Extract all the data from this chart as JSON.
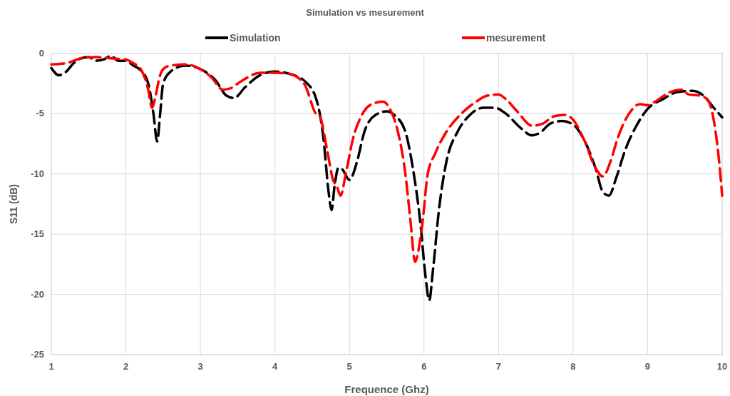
{
  "chart_data": {
    "type": "line",
    "title": "Simulation vs mesurement",
    "xlabel": "Frequence (Ghz)",
    "ylabel": "S11 (dB)",
    "xlim": [
      1,
      10
    ],
    "xticks": [
      1,
      2,
      3,
      4,
      5,
      6,
      7,
      8,
      9,
      10
    ],
    "ylim": [
      -25,
      0
    ],
    "yticks": [
      -25,
      -20,
      -15,
      -10,
      -5,
      0
    ],
    "grid": true,
    "legend": "top",
    "line_style": "dashed",
    "series": [
      {
        "name": "Simulation",
        "color": "#000000",
        "x": [
          1,
          1.1,
          1.2,
          1.3,
          1.4,
          1.5,
          1.6,
          1.7,
          1.8,
          1.9,
          2,
          2.1,
          2.2,
          2.3,
          2.37,
          2.42,
          2.46,
          2.5,
          2.6,
          2.8,
          3,
          3.2,
          3.35,
          3.45,
          3.6,
          3.8,
          4,
          4.2,
          4.4,
          4.55,
          4.65,
          4.72,
          4.76,
          4.8,
          4.85,
          4.9,
          5,
          5.1,
          5.2,
          5.35,
          5.5,
          5.6,
          5.75,
          5.85,
          5.95,
          6.02,
          6.07,
          6.12,
          6.2,
          6.3,
          6.45,
          6.6,
          6.8,
          6.95,
          7.1,
          7.3,
          7.45,
          7.55,
          7.7,
          7.85,
          8,
          8.15,
          8.3,
          8.4,
          8.48,
          8.58,
          8.7,
          8.85,
          9,
          9.2,
          9.4,
          9.6,
          9.75,
          9.9,
          10
        ],
        "values": [
          -1.2,
          -1.8,
          -1.5,
          -0.8,
          -0.4,
          -0.3,
          -0.6,
          -0.5,
          -0.2,
          -0.6,
          -0.6,
          -1,
          -1.4,
          -2.5,
          -5,
          -7.3,
          -5,
          -2.5,
          -1.5,
          -1,
          -1.3,
          -2.2,
          -3.5,
          -3.7,
          -2.8,
          -1.8,
          -1.5,
          -1.7,
          -2.3,
          -3.7,
          -7,
          -11.5,
          -13,
          -11,
          -9.5,
          -9.6,
          -10.5,
          -9,
          -6.5,
          -5.1,
          -4.8,
          -5.1,
          -6.5,
          -9.5,
          -14,
          -18.5,
          -20.5,
          -18,
          -13,
          -9,
          -6.5,
          -5.2,
          -4.5,
          -4.5,
          -5,
          -6.2,
          -6.8,
          -6.6,
          -5.8,
          -5.6,
          -5.9,
          -7.2,
          -9.5,
          -11.5,
          -11.8,
          -10.3,
          -8,
          -6,
          -4.6,
          -3.8,
          -3.2,
          -3.1,
          -3.5,
          -4.6,
          -5.3
        ]
      },
      {
        "name": "mesurement",
        "color": "#ff0000",
        "x": [
          1,
          1.2,
          1.4,
          1.6,
          1.8,
          2,
          2.1,
          2.2,
          2.3,
          2.35,
          2.4,
          2.45,
          2.5,
          2.6,
          2.8,
          3,
          3.15,
          3.3,
          3.4,
          3.5,
          3.6,
          3.8,
          4,
          4.2,
          4.4,
          4.55,
          4.6,
          4.7,
          4.78,
          4.83,
          4.88,
          4.95,
          5.05,
          5.15,
          5.3,
          5.45,
          5.55,
          5.65,
          5.75,
          5.82,
          5.88,
          5.92,
          5.98,
          6.05,
          6.15,
          6.3,
          6.5,
          6.7,
          6.85,
          7,
          7.1,
          7.25,
          7.45,
          7.6,
          7.75,
          7.9,
          8,
          8.15,
          8.3,
          8.4,
          8.5,
          8.6,
          8.75,
          8.9,
          9,
          9.1,
          9.3,
          9.45,
          9.55,
          9.7,
          9.8,
          9.9,
          9.96,
          10
        ],
        "values": [
          -0.9,
          -0.8,
          -0.4,
          -0.3,
          -0.4,
          -0.5,
          -0.8,
          -1.3,
          -3,
          -4.5,
          -3.5,
          -2,
          -1.3,
          -1,
          -0.9,
          -1.3,
          -2,
          -3,
          -2.9,
          -2.5,
          -2.1,
          -1.6,
          -1.6,
          -1.7,
          -2.6,
          -5,
          -5.2,
          -8,
          -10.5,
          -11,
          -11.8,
          -10,
          -7,
          -5.3,
          -4.2,
          -4,
          -4.7,
          -6.5,
          -10,
          -14,
          -17.3,
          -16.5,
          -14,
          -10,
          -8.3,
          -6.5,
          -5,
          -4,
          -3.5,
          -3.4,
          -3.8,
          -4.8,
          -6,
          -5.8,
          -5.2,
          -5.1,
          -5.5,
          -7.2,
          -9.5,
          -10.2,
          -9,
          -7,
          -5,
          -4.2,
          -4.3,
          -4,
          -3.2,
          -3,
          -3.4,
          -3.5,
          -3.8,
          -6,
          -9,
          -11.8
        ]
      }
    ]
  }
}
